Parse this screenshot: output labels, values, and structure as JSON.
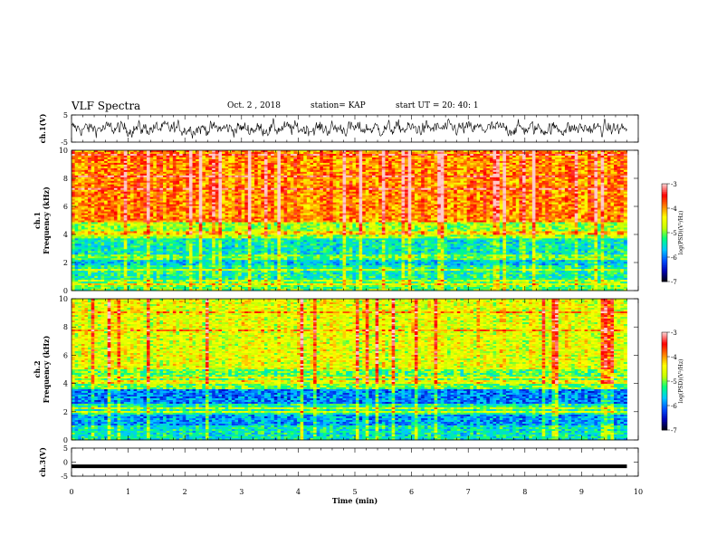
{
  "header": {
    "title": "VLF Spectra",
    "date": "Oct. 2 , 2018",
    "station": "station= KAP",
    "start": "start  UT =   20: 40: 1"
  },
  "chart_data": [
    {
      "type": "line",
      "panel": "ch1-waveform",
      "ylabel": "ch.1(V)",
      "ylim": [
        -5,
        5
      ],
      "y_ticks": [
        "5",
        "-5"
      ],
      "xlim": [
        0,
        10
      ],
      "series": [
        {
          "values": "noisy waveform between approx -4 and 4 V over 0–9.8 min"
        }
      ]
    },
    {
      "type": "heatmap",
      "panel": "ch1-spectrogram",
      "ylabel": "ch.1\nFrequency (kHz)",
      "ylabel_line1": "ch.1",
      "ylabel_line2": "Frequency  (kHz)",
      "ylim": [
        0,
        10
      ],
      "y_ticks": [
        "0",
        "2",
        "4",
        "6",
        "8",
        "10"
      ],
      "xlim": [
        0,
        10
      ],
      "data_end_min": 9.8,
      "colorbar": {
        "label": "log(PSD)(V²/Hz)",
        "range": [
          -7,
          -3
        ],
        "ticks": [
          "-3",
          "-4",
          "-5",
          "-6",
          "-7"
        ]
      },
      "bands": [
        {
          "from_khz": 0,
          "to_khz": 0.6,
          "level": -5.0
        },
        {
          "from_khz": 0.6,
          "to_khz": 1.8,
          "level": -5.3
        },
        {
          "from_khz": 1.8,
          "to_khz": 2.2,
          "level": -5.6
        },
        {
          "from_khz": 2.2,
          "to_khz": 2.6,
          "level": -5.0
        },
        {
          "from_khz": 2.6,
          "to_khz": 3.7,
          "level": -5.4
        },
        {
          "from_khz": 3.7,
          "to_khz": 4.9,
          "level": -4.8
        },
        {
          "from_khz": 4.9,
          "to_khz": 10,
          "level": -3.9
        }
      ]
    },
    {
      "type": "heatmap",
      "panel": "ch2-spectrogram",
      "ylabel": "ch.2\nFrequency (kHz)",
      "ylabel_line1": "ch.2",
      "ylabel_line2": "Frequency  (kHz)",
      "ylim": [
        0,
        10
      ],
      "y_ticks": [
        "0",
        "2",
        "4",
        "6",
        "8",
        "10"
      ],
      "xlim": [
        0,
        10
      ],
      "data_end_min": 9.8,
      "colorbar": {
        "label": "log(PSD)(V²/Hz)",
        "range": [
          -7,
          -3
        ],
        "ticks": [
          "-3",
          "-4",
          "-5",
          "-6",
          "-7"
        ]
      },
      "bands": [
        {
          "from_khz": 0,
          "to_khz": 1.0,
          "level": -5.4
        },
        {
          "from_khz": 1.0,
          "to_khz": 1.8,
          "level": -5.8
        },
        {
          "from_khz": 1.8,
          "to_khz": 2.6,
          "level": -5.3
        },
        {
          "from_khz": 2.6,
          "to_khz": 3.6,
          "level": -5.9
        },
        {
          "from_khz": 3.6,
          "to_khz": 5.0,
          "level": -5.0
        },
        {
          "from_khz": 5.0,
          "to_khz": 10,
          "level": -4.5
        }
      ]
    },
    {
      "type": "line",
      "panel": "ch3-waveform",
      "ylabel": "ch.3(V)",
      "ylim": [
        -5,
        5
      ],
      "y_ticks": [
        "5",
        "0",
        "-5"
      ],
      "xlim": [
        0,
        10
      ],
      "series": [
        {
          "values": "nearly constant at approx -1.5 V over 0–9.8 min"
        }
      ],
      "xlabel": "Time  (min)",
      "x_ticks": [
        "0",
        "1",
        "2",
        "3",
        "4",
        "5",
        "6",
        "7",
        "8",
        "9",
        "10"
      ]
    }
  ],
  "colors": {
    "colormap": [
      "#000000",
      "#0000b0",
      "#0050ff",
      "#00c8ff",
      "#00ff80",
      "#c8ff00",
      "#ffff00",
      "#ff8000",
      "#ff0000",
      "#ffc8c8"
    ]
  }
}
